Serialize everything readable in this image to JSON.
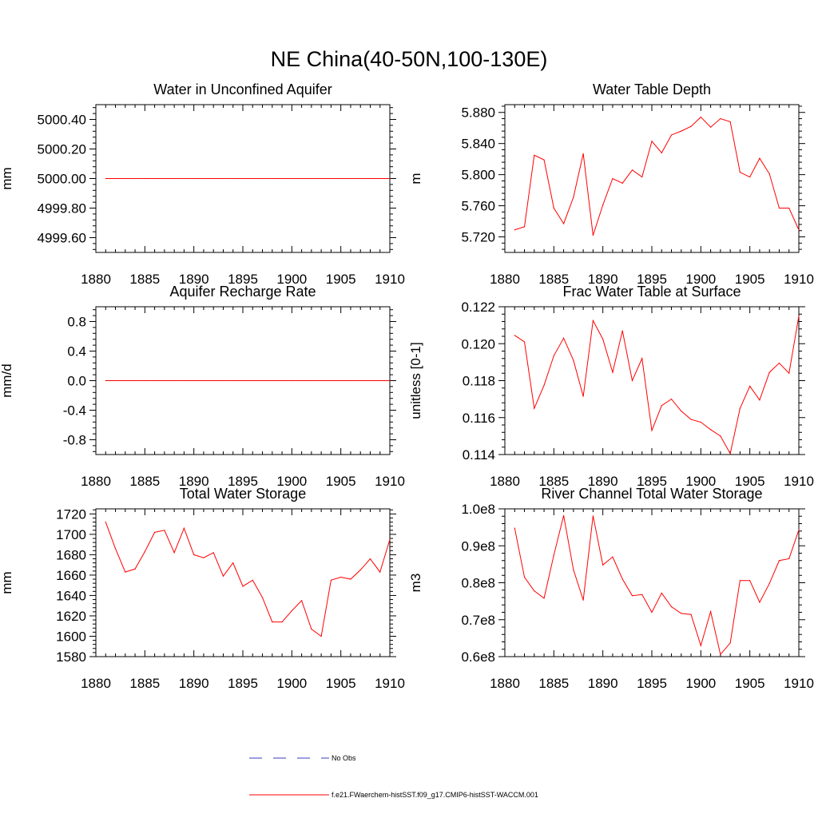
{
  "figure": {
    "title": "NE China(40-50N,100-130E)"
  },
  "legend": {
    "items": [
      {
        "label": "No Obs",
        "color": "#3b3bb8",
        "style": "dashed"
      },
      {
        "label": "f.e21.FWaerchem-histSST.f09_g17.CMIP6-histSST-WACCM.001",
        "color": "#ff0000",
        "style": "solid"
      }
    ]
  },
  "chart_data": [
    {
      "type": "line",
      "title": "Water in Unconfined Aquifer",
      "ylabel": "mm",
      "xlim": [
        1880,
        1910
      ],
      "ylim": [
        4999.5,
        5000.5
      ],
      "xticks": [
        1880,
        1885,
        1890,
        1895,
        1900,
        1905,
        1910
      ],
      "yticks": [
        4999.6,
        4999.8,
        5000.0,
        5000.2,
        5000.4
      ],
      "yticklabels": [
        "4999.60",
        "4999.80",
        "5000.00",
        "5000.20",
        "5000.40"
      ],
      "x": [
        1881,
        1882,
        1883,
        1884,
        1885,
        1886,
        1887,
        1888,
        1889,
        1890,
        1891,
        1892,
        1893,
        1894,
        1895,
        1896,
        1897,
        1898,
        1899,
        1900,
        1901,
        1902,
        1903,
        1904,
        1905,
        1906,
        1907,
        1908,
        1909,
        1910
      ],
      "series": [
        {
          "color": "#ff0000",
          "values": [
            5000,
            5000,
            5000,
            5000,
            5000,
            5000,
            5000,
            5000,
            5000,
            5000,
            5000,
            5000,
            5000,
            5000,
            5000,
            5000,
            5000,
            5000,
            5000,
            5000,
            5000,
            5000,
            5000,
            5000,
            5000,
            5000,
            5000,
            5000,
            5000,
            5000
          ]
        }
      ]
    },
    {
      "type": "line",
      "title": "Water Table Depth",
      "ylabel": "m",
      "xlim": [
        1880,
        1910
      ],
      "ylim": [
        5.7,
        5.89
      ],
      "xticks": [
        1880,
        1885,
        1890,
        1895,
        1900,
        1905,
        1910
      ],
      "yticks": [
        5.72,
        5.76,
        5.8,
        5.84,
        5.88
      ],
      "yticklabels": [
        "5.720",
        "5.760",
        "5.800",
        "5.840",
        "5.880"
      ],
      "x": [
        1881,
        1882,
        1883,
        1884,
        1885,
        1886,
        1887,
        1888,
        1889,
        1890,
        1891,
        1892,
        1893,
        1894,
        1895,
        1896,
        1897,
        1898,
        1899,
        1900,
        1901,
        1902,
        1903,
        1904,
        1905,
        1906,
        1907,
        1908,
        1909,
        1910
      ],
      "series": [
        {
          "color": "#ff0000",
          "values": [
            5.729,
            5.733,
            5.825,
            5.819,
            5.757,
            5.737,
            5.771,
            5.827,
            5.722,
            5.761,
            5.795,
            5.789,
            5.806,
            5.797,
            5.843,
            5.828,
            5.851,
            5.856,
            5.862,
            5.874,
            5.861,
            5.872,
            5.868,
            5.803,
            5.797,
            5.821,
            5.801,
            5.757,
            5.757,
            5.729
          ]
        }
      ]
    },
    {
      "type": "line",
      "title": "Aquifer Recharge Rate",
      "ylabel": "mm/d",
      "xlim": [
        1880,
        1910
      ],
      "ylim": [
        -1.0,
        1.0
      ],
      "xticks": [
        1880,
        1885,
        1890,
        1895,
        1900,
        1905,
        1910
      ],
      "yticks": [
        -0.8,
        -0.4,
        0.0,
        0.4,
        0.8
      ],
      "yticklabels": [
        "-0.8",
        "-0.4",
        "0.0",
        "0.4",
        "0.8"
      ],
      "x": [
        1881,
        1882,
        1883,
        1884,
        1885,
        1886,
        1887,
        1888,
        1889,
        1890,
        1891,
        1892,
        1893,
        1894,
        1895,
        1896,
        1897,
        1898,
        1899,
        1900,
        1901,
        1902,
        1903,
        1904,
        1905,
        1906,
        1907,
        1908,
        1909,
        1910
      ],
      "series": [
        {
          "color": "#ff0000",
          "values": [
            0,
            0,
            0,
            0,
            0,
            0,
            0,
            0,
            0,
            0,
            0,
            0,
            0,
            0,
            0,
            0,
            0,
            0,
            0,
            0,
            0,
            0,
            0,
            0,
            0,
            0,
            0,
            0,
            0,
            0
          ]
        }
      ]
    },
    {
      "type": "line",
      "title": "Frac Water Table at Surface",
      "ylabel": "unitless [0-1]",
      "xlim": [
        1880,
        1910
      ],
      "ylim": [
        0.114,
        0.122
      ],
      "xticks": [
        1880,
        1885,
        1890,
        1895,
        1900,
        1905,
        1910
      ],
      "yticks": [
        0.114,
        0.116,
        0.118,
        0.12,
        0.122
      ],
      "yticklabels": [
        "0.114",
        "0.116",
        "0.118",
        "0.120",
        "0.122"
      ],
      "x": [
        1881,
        1882,
        1883,
        1884,
        1885,
        1886,
        1887,
        1888,
        1889,
        1890,
        1891,
        1892,
        1893,
        1894,
        1895,
        1896,
        1897,
        1898,
        1899,
        1900,
        1901,
        1902,
        1903,
        1904,
        1905,
        1906,
        1907,
        1908,
        1909,
        1910
      ],
      "series": [
        {
          "color": "#ff0000",
          "values": [
            0.12045,
            0.1201,
            0.1165,
            0.11775,
            0.11935,
            0.1203,
            0.1191,
            0.11715,
            0.12125,
            0.12025,
            0.11845,
            0.1207,
            0.118,
            0.1192,
            0.1153,
            0.11665,
            0.117,
            0.11635,
            0.1159,
            0.11575,
            0.11535,
            0.115,
            0.11405,
            0.1165,
            0.1177,
            0.11695,
            0.11845,
            0.11895,
            0.1184,
            0.1215
          ]
        }
      ]
    },
    {
      "type": "line",
      "title": "Total Water Storage",
      "ylabel": "mm",
      "xlim": [
        1880,
        1910
      ],
      "ylim": [
        1580,
        1725
      ],
      "xticks": [
        1880,
        1885,
        1890,
        1895,
        1900,
        1905,
        1910
      ],
      "yticks": [
        1580,
        1600,
        1620,
        1640,
        1660,
        1680,
        1700,
        1720
      ],
      "yticklabels": [
        "1580",
        "1600",
        "1620",
        "1640",
        "1660",
        "1680",
        "1700",
        "1720"
      ],
      "x": [
        1881,
        1882,
        1883,
        1884,
        1885,
        1886,
        1887,
        1888,
        1889,
        1890,
        1891,
        1892,
        1893,
        1894,
        1895,
        1896,
        1897,
        1898,
        1899,
        1900,
        1901,
        1902,
        1903,
        1904,
        1905,
        1906,
        1907,
        1908,
        1909,
        1910
      ],
      "series": [
        {
          "color": "#ff0000",
          "values": [
            1712,
            1686,
            1663,
            1666,
            1683,
            1702,
            1704,
            1682,
            1706,
            1680,
            1677,
            1682,
            1659,
            1672,
            1649,
            1655,
            1638,
            1614,
            1614,
            1625,
            1635,
            1607,
            1600,
            1655,
            1658,
            1656,
            1665,
            1676,
            1663,
            1695
          ]
        }
      ]
    },
    {
      "type": "line",
      "title": "River Channel Total Water Storage",
      "ylabel": "m3",
      "xlim": [
        1880,
        1910
      ],
      "ylim": [
        60000000,
        100000000
      ],
      "xticks": [
        1880,
        1885,
        1890,
        1895,
        1900,
        1905,
        1910
      ],
      "yticks": [
        60000000,
        70000000,
        80000000,
        90000000,
        100000000
      ],
      "yticklabels": [
        "0.6e8",
        "0.7e8",
        "0.8e8",
        "0.9e8",
        "1.0e8"
      ],
      "x": [
        1881,
        1882,
        1883,
        1884,
        1885,
        1886,
        1887,
        1888,
        1889,
        1890,
        1891,
        1892,
        1893,
        1894,
        1895,
        1896,
        1897,
        1898,
        1899,
        1900,
        1901,
        1902,
        1903,
        1904,
        1905,
        1906,
        1907,
        1908,
        1909,
        1910
      ],
      "series": [
        {
          "color": "#ff0000",
          "values": [
            94800000,
            81500000,
            77800000,
            75800000,
            87500000,
            98200000,
            83500000,
            75300000,
            98100000,
            84800000,
            87000000,
            81000000,
            76500000,
            76800000,
            72000000,
            77200000,
            73500000,
            71700000,
            71400000,
            63000000,
            72200000,
            60600000,
            63700000,
            80600000,
            80600000,
            74700000,
            79800000,
            86000000,
            86500000,
            94300000
          ]
        }
      ]
    }
  ]
}
